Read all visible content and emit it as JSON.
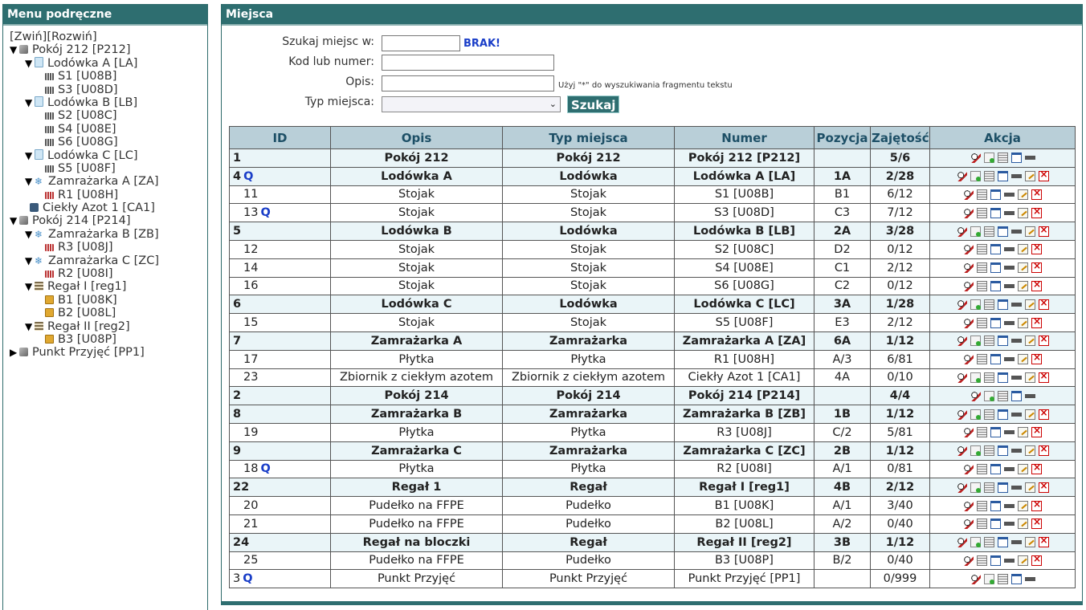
{
  "left_panel": {
    "title": "Menu podręczne",
    "collapse": "[Zwiń]",
    "expand": "[Rozwiń]",
    "tree": [
      {
        "level": 0,
        "arrow": "▼",
        "icon": "room",
        "label": "Pokój 212 [P212]"
      },
      {
        "level": 1,
        "arrow": "▼",
        "icon": "fridge",
        "label": "Lodówka A [LA]"
      },
      {
        "level": 2,
        "arrow": "",
        "icon": "rack",
        "label": "S1 [U08B]"
      },
      {
        "level": 2,
        "arrow": "",
        "icon": "rack",
        "label": "S3 [U08D]"
      },
      {
        "level": 1,
        "arrow": "▼",
        "icon": "fridge",
        "label": "Lodówka B [LB]"
      },
      {
        "level": 2,
        "arrow": "",
        "icon": "rack",
        "label": "S2 [U08C]"
      },
      {
        "level": 2,
        "arrow": "",
        "icon": "rack",
        "label": "S4 [U08E]"
      },
      {
        "level": 2,
        "arrow": "",
        "icon": "rack",
        "label": "S6 [U08G]"
      },
      {
        "level": 1,
        "arrow": "▼",
        "icon": "fridge",
        "label": "Lodówka C [LC]"
      },
      {
        "level": 2,
        "arrow": "",
        "icon": "rack",
        "label": "S5 [U08F]"
      },
      {
        "level": 1,
        "arrow": "▼",
        "icon": "freezer",
        "label": "Zamrażarka A [ZA]"
      },
      {
        "level": 2,
        "arrow": "",
        "icon": "plate",
        "label": "R1 [U08H]"
      },
      {
        "level": 1,
        "arrow": "",
        "icon": "dewar",
        "label": "Ciekły Azot 1 [CA1]"
      },
      {
        "level": 0,
        "arrow": "▼",
        "icon": "room",
        "label": "Pokój 214 [P214]"
      },
      {
        "level": 1,
        "arrow": "▼",
        "icon": "freezer",
        "label": "Zamrażarka B [ZB]"
      },
      {
        "level": 2,
        "arrow": "",
        "icon": "plate",
        "label": "R3 [U08J]"
      },
      {
        "level": 1,
        "arrow": "▼",
        "icon": "freezer",
        "label": "Zamrażarka C [ZC]"
      },
      {
        "level": 2,
        "arrow": "",
        "icon": "plate",
        "label": "R2 [U08I]"
      },
      {
        "level": 1,
        "arrow": "▼",
        "icon": "shelf",
        "label": "Regał I [reg1]"
      },
      {
        "level": 2,
        "arrow": "",
        "icon": "box",
        "label": "B1 [U08K]"
      },
      {
        "level": 2,
        "arrow": "",
        "icon": "box",
        "label": "B2 [U08L]"
      },
      {
        "level": 1,
        "arrow": "▼",
        "icon": "shelf",
        "label": "Regał II [reg2]"
      },
      {
        "level": 2,
        "arrow": "",
        "icon": "box",
        "label": "B3 [U08P]"
      },
      {
        "level": 0,
        "arrow": "▶",
        "icon": "room",
        "label": "Punkt Przyjęć [PP1]"
      }
    ]
  },
  "main": {
    "title": "Miejsca",
    "form": {
      "search_in_label": "Szukaj miejsc w:",
      "search_in_value": "",
      "brak": "BRAK!",
      "code_label": "Kod lub numer:",
      "code_value": "",
      "desc_label": "Opis:",
      "desc_value": "",
      "hint": "Użyj \"*\" do wyszukiwania fragmentu tekstu",
      "type_label": "Typ miejsca:",
      "type_value": "",
      "search_button": "Szukaj"
    },
    "table": {
      "headers": [
        "ID",
        "Opis",
        "Typ miejsca",
        "Numer",
        "Pozycja",
        "Zajętość",
        "Akcja"
      ],
      "rows": [
        {
          "id": "1",
          "q": false,
          "opis": "Pokój 212",
          "typ": "Pokój 212",
          "numer": "Pokój 212 [P212]",
          "poz": "",
          "zaj": "5/6",
          "style": "bold",
          "sub": false,
          "acts": [
            "search",
            "add",
            "doc",
            "cal",
            "print"
          ]
        },
        {
          "id": "4",
          "q": true,
          "opis": "Lodówka A",
          "typ": "Lodówka",
          "numer": "Lodówka A [LA]",
          "poz": "1A",
          "zaj": "2/28",
          "style": "bold",
          "sub": false,
          "acts": [
            "search",
            "add",
            "doc",
            "cal",
            "print",
            "edit",
            "del"
          ]
        },
        {
          "id": "11",
          "q": false,
          "opis": "Stojak",
          "typ": "Stojak",
          "numer": "S1 [U08B]",
          "poz": "B1",
          "zaj": "6/12",
          "style": "plain",
          "sub": true,
          "acts": [
            "search",
            "doc",
            "cal",
            "print",
            "edit",
            "del"
          ]
        },
        {
          "id": "13",
          "q": true,
          "opis": "Stojak",
          "typ": "Stojak",
          "numer": "S3 [U08D]",
          "poz": "C3",
          "zaj": "7/12",
          "style": "plain",
          "sub": true,
          "acts": [
            "search",
            "doc",
            "cal",
            "print",
            "edit",
            "del"
          ]
        },
        {
          "id": "5",
          "q": false,
          "opis": "Lodówka B",
          "typ": "Lodówka",
          "numer": "Lodówka B [LB]",
          "poz": "2A",
          "zaj": "3/28",
          "style": "bold",
          "sub": false,
          "acts": [
            "search",
            "add",
            "doc",
            "cal",
            "print",
            "edit",
            "del"
          ]
        },
        {
          "id": "12",
          "q": false,
          "opis": "Stojak",
          "typ": "Stojak",
          "numer": "S2 [U08C]",
          "poz": "D2",
          "zaj": "0/12",
          "style": "plain",
          "sub": true,
          "acts": [
            "search",
            "doc",
            "cal",
            "print",
            "edit",
            "del"
          ]
        },
        {
          "id": "14",
          "q": false,
          "opis": "Stojak",
          "typ": "Stojak",
          "numer": "S4 [U08E]",
          "poz": "C1",
          "zaj": "2/12",
          "style": "plain",
          "sub": true,
          "acts": [
            "search",
            "doc",
            "cal",
            "print",
            "edit",
            "del"
          ]
        },
        {
          "id": "16",
          "q": false,
          "opis": "Stojak",
          "typ": "Stojak",
          "numer": "S6 [U08G]",
          "poz": "C2",
          "zaj": "0/12",
          "style": "plain",
          "sub": true,
          "acts": [
            "search",
            "doc",
            "cal",
            "print",
            "edit",
            "del"
          ]
        },
        {
          "id": "6",
          "q": false,
          "opis": "Lodówka C",
          "typ": "Lodówka",
          "numer": "Lodówka C [LC]",
          "poz": "3A",
          "zaj": "1/28",
          "style": "bold",
          "sub": false,
          "acts": [
            "search",
            "add",
            "doc",
            "cal",
            "print",
            "edit",
            "del"
          ]
        },
        {
          "id": "15",
          "q": false,
          "opis": "Stojak",
          "typ": "Stojak",
          "numer": "S5 [U08F]",
          "poz": "E3",
          "zaj": "2/12",
          "style": "plain",
          "sub": true,
          "acts": [
            "search",
            "doc",
            "cal",
            "print",
            "edit",
            "del"
          ]
        },
        {
          "id": "7",
          "q": false,
          "opis": "Zamrażarka A",
          "typ": "Zamrażarka",
          "numer": "Zamrażarka A [ZA]",
          "poz": "6A",
          "zaj": "1/12",
          "style": "bold",
          "sub": false,
          "acts": [
            "search",
            "add",
            "doc",
            "cal",
            "print",
            "edit",
            "del"
          ]
        },
        {
          "id": "17",
          "q": false,
          "opis": "Płytka",
          "typ": "Płytka",
          "numer": "R1 [U08H]",
          "poz": "A/3",
          "zaj": "6/81",
          "style": "plain",
          "sub": true,
          "acts": [
            "search",
            "doc",
            "cal",
            "print",
            "edit",
            "del"
          ]
        },
        {
          "id": "23",
          "q": false,
          "opis": "Zbiornik z ciekłym azotem",
          "typ": "Zbiornik z ciekłym azotem",
          "numer": "Ciekły Azot 1 [CA1]",
          "poz": "4A",
          "zaj": "0/10",
          "style": "plain",
          "sub": true,
          "acts": [
            "search",
            "add",
            "doc",
            "cal",
            "print",
            "edit",
            "del"
          ]
        },
        {
          "id": "2",
          "q": false,
          "opis": "Pokój 214",
          "typ": "Pokój 214",
          "numer": "Pokój 214 [P214]",
          "poz": "",
          "zaj": "4/4",
          "style": "bold",
          "sub": false,
          "acts": [
            "search",
            "add",
            "doc",
            "cal",
            "print"
          ]
        },
        {
          "id": "8",
          "q": false,
          "opis": "Zamrażarka B",
          "typ": "Zamrażarka",
          "numer": "Zamrażarka B [ZB]",
          "poz": "1B",
          "zaj": "1/12",
          "style": "bold",
          "sub": false,
          "acts": [
            "search",
            "add",
            "doc",
            "cal",
            "print",
            "edit",
            "del"
          ]
        },
        {
          "id": "19",
          "q": false,
          "opis": "Płytka",
          "typ": "Płytka",
          "numer": "R3 [U08J]",
          "poz": "C/2",
          "zaj": "5/81",
          "style": "plain",
          "sub": true,
          "acts": [
            "search",
            "doc",
            "cal",
            "print",
            "edit",
            "del"
          ]
        },
        {
          "id": "9",
          "q": false,
          "opis": "Zamrażarka C",
          "typ": "Zamrażarka",
          "numer": "Zamrażarka C [ZC]",
          "poz": "2B",
          "zaj": "1/12",
          "style": "bold",
          "sub": false,
          "acts": [
            "search",
            "add",
            "doc",
            "cal",
            "print",
            "edit",
            "del"
          ]
        },
        {
          "id": "18",
          "q": true,
          "opis": "Płytka",
          "typ": "Płytka",
          "numer": "R2 [U08I]",
          "poz": "A/1",
          "zaj": "0/81",
          "style": "plain",
          "sub": true,
          "acts": [
            "search",
            "doc",
            "cal",
            "print",
            "edit",
            "del"
          ]
        },
        {
          "id": "22",
          "q": false,
          "opis": "Regał 1",
          "typ": "Regał",
          "numer": "Regał I [reg1]",
          "poz": "4B",
          "zaj": "2/12",
          "style": "bold",
          "sub": false,
          "acts": [
            "search",
            "add",
            "doc",
            "cal",
            "print",
            "edit",
            "del"
          ]
        },
        {
          "id": "20",
          "q": false,
          "opis": "Pudełko na FFPE",
          "typ": "Pudełko",
          "numer": "B1 [U08K]",
          "poz": "A/1",
          "zaj": "3/40",
          "style": "plain",
          "sub": true,
          "acts": [
            "search",
            "doc",
            "cal",
            "print",
            "edit",
            "del"
          ]
        },
        {
          "id": "21",
          "q": false,
          "opis": "Pudełko na FFPE",
          "typ": "Pudełko",
          "numer": "B2 [U08L]",
          "poz": "A/2",
          "zaj": "0/40",
          "style": "plain",
          "sub": true,
          "acts": [
            "search",
            "doc",
            "cal",
            "print",
            "edit",
            "del"
          ]
        },
        {
          "id": "24",
          "q": false,
          "opis": "Regał na bloczki",
          "typ": "Regał",
          "numer": "Regał II [reg2]",
          "poz": "3B",
          "zaj": "1/12",
          "style": "bold",
          "sub": false,
          "acts": [
            "search",
            "add",
            "doc",
            "cal",
            "print",
            "edit",
            "del"
          ]
        },
        {
          "id": "25",
          "q": false,
          "opis": "Pudełko na FFPE",
          "typ": "Pudełko",
          "numer": "B3 [U08P]",
          "poz": "B/2",
          "zaj": "0/40",
          "style": "plain",
          "sub": true,
          "acts": [
            "search",
            "doc",
            "cal",
            "print",
            "edit",
            "del"
          ]
        },
        {
          "id": "3",
          "q": true,
          "opis": "Punkt Przyjęć",
          "typ": "Punkt Przyjęć",
          "numer": "Punkt Przyjęć [PP1]",
          "poz": "",
          "zaj": "0/999",
          "style": "plain",
          "sub": false,
          "acts": [
            "search",
            "add",
            "doc",
            "cal",
            "print"
          ]
        }
      ]
    }
  }
}
